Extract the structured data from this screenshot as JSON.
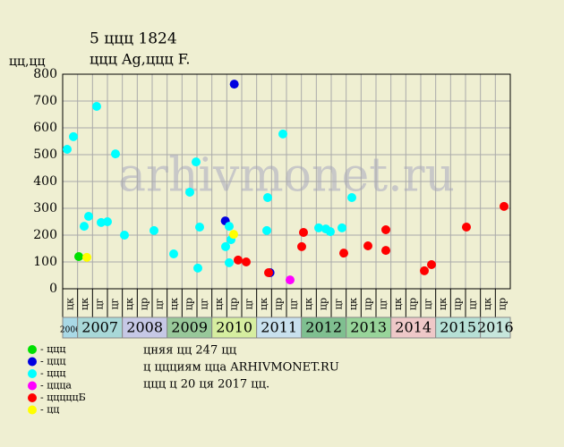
{
  "chart_data": {
    "type": "scatter",
    "title": "5 ццц 1824",
    "subtitle": "ццц Ag,ццц F.",
    "y_label": "цц,цц",
    "watermark": "arhivmonet.ru",
    "xlim": [
      0,
      30
    ],
    "ylim": [
      0,
      800
    ],
    "yticks": [
      0,
      100,
      200,
      300,
      400,
      500,
      600,
      700,
      800
    ],
    "grid": true,
    "column_labels": [
      "цк",
      "цк",
      "цг",
      "цг",
      "цк",
      "цр",
      "цг",
      "цк",
      "цр",
      "цг",
      "цк",
      "цр",
      "цг",
      "цк",
      "цр",
      "цг",
      "цк",
      "цр",
      "цг",
      "цк",
      "цр",
      "цг",
      "цк",
      "цр",
      "цг",
      "цк",
      "цр",
      "цг",
      "цк",
      "цр"
    ],
    "years": [
      {
        "label": "2006",
        "start": 0,
        "end": 1,
        "color": "#a9d9e6"
      },
      {
        "label": "2007",
        "start": 1,
        "end": 4,
        "color": "#a8d8d8"
      },
      {
        "label": "2008",
        "start": 4,
        "end": 7,
        "color": "#c6c8e6"
      },
      {
        "label": "2009",
        "start": 7,
        "end": 10,
        "color": "#98c89a"
      },
      {
        "label": "2010",
        "start": 10,
        "end": 13,
        "color": "#d6eea0"
      },
      {
        "label": "2011",
        "start": 13,
        "end": 16,
        "color": "#c8e0ee"
      },
      {
        "label": "2012",
        "start": 16,
        "end": 19,
        "color": "#7fbf90"
      },
      {
        "label": "2013",
        "start": 19,
        "end": 22,
        "color": "#98d49a"
      },
      {
        "label": "2014",
        "start": 22,
        "end": 25,
        "color": "#eec8c8"
      },
      {
        "label": "2015",
        "start": 25,
        "end": 28,
        "color": "#b6e0d6"
      },
      {
        "label": "2016",
        "start": 28,
        "end": 30,
        "color": "#c6e6dc"
      }
    ],
    "series": [
      {
        "name": "- ццц",
        "color": "#00e000",
        "x": [
          1.08
        ],
        "values": [
          120
        ]
      },
      {
        "name": "- ццц",
        "color": "#0000e0",
        "x": [
          11.5,
          10.9,
          13.9
        ],
        "values": [
          763,
          253,
          60
        ]
      },
      {
        "name": "- ццц",
        "color": "#00ffff",
        "x": [
          0.3,
          0.72,
          1.44,
          1.74,
          2.28,
          2.58,
          3.0,
          3.54,
          4.14,
          6.12,
          7.44,
          8.52,
          8.94,
          9.06,
          9.18,
          10.92,
          11.16,
          11.16,
          11.28,
          13.68,
          13.74,
          14.76,
          17.16,
          17.64,
          17.94,
          18.72,
          19.38
        ],
        "values": [
          520,
          567,
          233,
          270,
          680,
          247,
          250,
          503,
          200,
          217,
          130,
          360,
          473,
          77,
          230,
          157,
          233,
          97,
          183,
          217,
          340,
          577,
          227,
          223,
          213,
          227,
          340
        ]
      },
      {
        "name": "- ццца",
        "color": "#ff00ff",
        "x": [
          15.24
        ],
        "values": [
          33
        ]
      },
      {
        "name": "- цццццБ",
        "color": "#ff0000",
        "x": [
          11.76,
          12.3,
          13.8,
          16.02,
          16.14,
          18.84,
          20.46,
          21.66,
          21.66,
          24.24,
          24.72,
          27.06,
          29.58
        ],
        "values": [
          107,
          100,
          60,
          157,
          210,
          133,
          160,
          220,
          143,
          67,
          90,
          230,
          307
        ]
      },
      {
        "name": "- цц",
        "color": "#ffff00",
        "x": [
          1.62,
          11.46
        ],
        "values": [
          117,
          203
        ]
      }
    ],
    "notes": [
      "цняя цц 247 цц",
      "ц ццциям цца ARHIVMONET.RU",
      "ццц ц 20 ця 2017 цц."
    ]
  }
}
